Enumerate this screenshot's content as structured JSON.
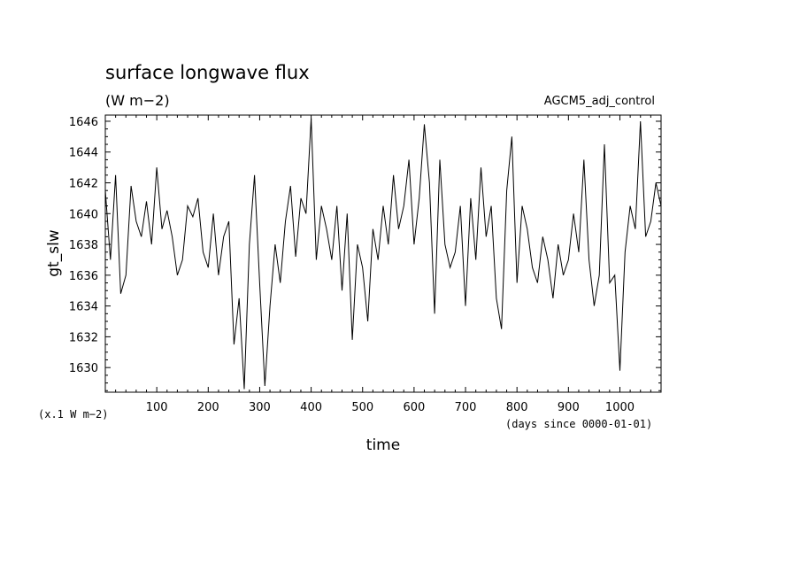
{
  "chart_data": {
    "type": "line",
    "title": "surface longwave flux",
    "units_label": "(W m−2)",
    "run_label": "AGCM5_adj_control",
    "ylabel": "gt_slw",
    "xlabel": "time",
    "x_unit_note": "(days since 0000-01-01)",
    "y_scale_note": "(x.1 W m−2)",
    "xlim": [
      0,
      1080
    ],
    "ylim": [
      1628.4,
      1646.4
    ],
    "x_ticks": [
      100,
      200,
      300,
      400,
      500,
      600,
      700,
      800,
      900,
      1000
    ],
    "y_ticks": [
      1630,
      1632,
      1634,
      1636,
      1638,
      1640,
      1642,
      1644,
      1646
    ],
    "grid": false,
    "series": [
      {
        "x": [
          0,
          10,
          20,
          30,
          40,
          50,
          60,
          70,
          80,
          90,
          100,
          110,
          120,
          130,
          140,
          150,
          160,
          170,
          180,
          190,
          200,
          210,
          220,
          230,
          240,
          250,
          260,
          270,
          280,
          290,
          300,
          310,
          320,
          330,
          340,
          350,
          360,
          370,
          380,
          390,
          400,
          410,
          420,
          430,
          440,
          450,
          460,
          470,
          480,
          490,
          500,
          510,
          520,
          530,
          540,
          550,
          560,
          570,
          580,
          590,
          600,
          610,
          620,
          630,
          640,
          650,
          660,
          670,
          680,
          690,
          700,
          710,
          720,
          730,
          740,
          750,
          760,
          770,
          780,
          790,
          800,
          810,
          820,
          830,
          840,
          850,
          860,
          870,
          880,
          890,
          900,
          910,
          920,
          930,
          940,
          950,
          960,
          970,
          980,
          990,
          1000,
          1010,
          1020,
          1030,
          1040,
          1050,
          1060,
          1070,
          1080
        ],
        "y": [
          1641.5,
          1637.0,
          1642.5,
          1634.8,
          1636.0,
          1641.8,
          1639.5,
          1638.5,
          1640.8,
          1638.0,
          1643.0,
          1639.0,
          1640.2,
          1638.5,
          1636.0,
          1637.0,
          1640.5,
          1639.8,
          1641.0,
          1637.5,
          1636.5,
          1640.0,
          1636.0,
          1638.5,
          1639.5,
          1631.5,
          1634.5,
          1628.6,
          1638.0,
          1642.5,
          1635.5,
          1628.8,
          1634.0,
          1638.0,
          1635.5,
          1639.5,
          1641.8,
          1637.2,
          1641.0,
          1640.0,
          1646.2,
          1637.0,
          1640.5,
          1639.0,
          1637.0,
          1640.5,
          1635.0,
          1640.0,
          1631.8,
          1638.0,
          1636.5,
          1633.0,
          1639.0,
          1637.0,
          1640.5,
          1638.0,
          1642.5,
          1639.0,
          1640.5,
          1643.5,
          1638.0,
          1641.0,
          1645.8,
          1642.0,
          1633.5,
          1643.5,
          1638.0,
          1636.5,
          1637.5,
          1640.5,
          1634.0,
          1641.0,
          1637.0,
          1643.0,
          1638.5,
          1640.5,
          1634.5,
          1632.5,
          1641.5,
          1645.0,
          1635.5,
          1640.5,
          1639.0,
          1636.5,
          1635.5,
          1638.5,
          1637.0,
          1634.5,
          1638.0,
          1636.0,
          1637.0,
          1640.0,
          1637.5,
          1643.5,
          1637.0,
          1634.0,
          1636.0,
          1644.5,
          1635.5,
          1636.0,
          1629.8,
          1637.5,
          1640.5,
          1639.0,
          1646.0,
          1638.5,
          1639.5,
          1642.0,
          1640.5
        ]
      }
    ]
  }
}
